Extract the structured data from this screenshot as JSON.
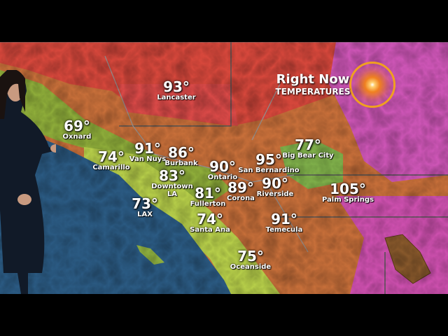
{
  "graphic": {
    "title": "Right Now",
    "subtitle": "TEMPERATURES",
    "sun-icon": "sun-icon"
  },
  "colors": {
    "ocean": "#2b5b84",
    "hot": "#d94a3a",
    "very_hot": "#d24fc0",
    "warm": "#c9783a",
    "mild": "#8fbf3a",
    "cool": "#d9e84a"
  },
  "cities": [
    {
      "name": "Lancaster",
      "temp": "93°"
    },
    {
      "name": "Oxnard",
      "temp": "69°"
    },
    {
      "name": "Camarillo",
      "temp": "74°"
    },
    {
      "name": "Van Nuys",
      "temp": "91°"
    },
    {
      "name": "Burbank",
      "temp": "86°"
    },
    {
      "name": "Downtown LA",
      "temp": "83°"
    },
    {
      "name": "Ontario",
      "temp": "90°"
    },
    {
      "name": "San Bernardino",
      "temp": "95°"
    },
    {
      "name": "Big Bear City",
      "temp": "77°"
    },
    {
      "name": "Fullerton",
      "temp": "81°"
    },
    {
      "name": "Corona",
      "temp": "89°"
    },
    {
      "name": "Riverside",
      "temp": "90°"
    },
    {
      "name": "Palm Springs",
      "temp": "105°"
    },
    {
      "name": "LAX",
      "temp": "73°"
    },
    {
      "name": "Temecula",
      "temp": "91°"
    },
    {
      "name": "Santa Ana",
      "temp": "74°"
    },
    {
      "name": "Oceanside",
      "temp": "75°"
    }
  ]
}
